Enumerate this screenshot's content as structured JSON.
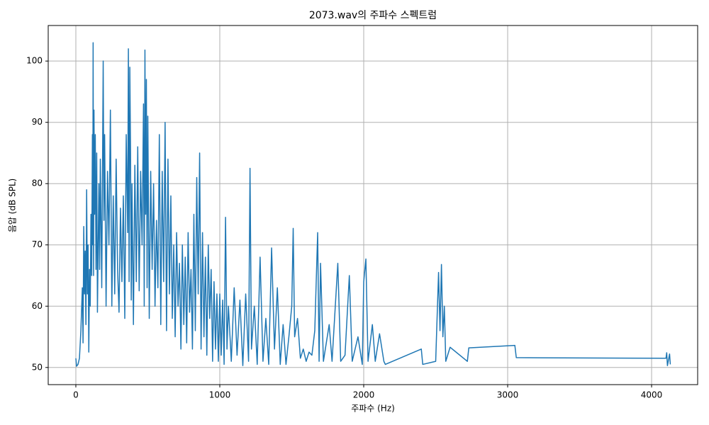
{
  "chart_data": {
    "type": "line",
    "title": "2073.wav의 주파수 스펙트럼",
    "x_label": "주파수 (Hz)",
    "y_label": "음압 (dB SPL)",
    "x": [
      0,
      5,
      15,
      25,
      35,
      45,
      50,
      55,
      60,
      65,
      70,
      75,
      80,
      85,
      90,
      95,
      100,
      105,
      110,
      115,
      118,
      120,
      123,
      126,
      130,
      135,
      140,
      145,
      150,
      160,
      165,
      170,
      180,
      190,
      195,
      200,
      210,
      220,
      230,
      240,
      250,
      260,
      270,
      280,
      290,
      300,
      310,
      320,
      330,
      340,
      350,
      360,
      365,
      370,
      375,
      380,
      385,
      390,
      400,
      410,
      420,
      430,
      440,
      450,
      460,
      470,
      475,
      480,
      485,
      490,
      495,
      500,
      510,
      520,
      530,
      540,
      550,
      560,
      570,
      580,
      590,
      600,
      610,
      620,
      630,
      640,
      650,
      660,
      670,
      680,
      690,
      700,
      710,
      720,
      730,
      740,
      750,
      760,
      770,
      780,
      790,
      800,
      810,
      820,
      830,
      840,
      850,
      860,
      870,
      880,
      890,
      900,
      910,
      920,
      930,
      940,
      950,
      960,
      970,
      980,
      990,
      1000,
      1010,
      1020,
      1030,
      1040,
      1050,
      1060,
      1080,
      1100,
      1120,
      1140,
      1160,
      1180,
      1200,
      1210,
      1220,
      1240,
      1260,
      1280,
      1300,
      1320,
      1340,
      1360,
      1380,
      1400,
      1420,
      1440,
      1460,
      1480,
      1500,
      1510,
      1520,
      1540,
      1560,
      1580,
      1600,
      1620,
      1640,
      1660,
      1680,
      1690,
      1700,
      1720,
      1760,
      1780,
      1820,
      1840,
      1870,
      1900,
      1920,
      1960,
      1990,
      2000,
      2015,
      2030,
      2060,
      2080,
      2110,
      2140,
      2150,
      2400,
      2410,
      2500,
      2520,
      2530,
      2540,
      2550,
      2560,
      2570,
      2600,
      2720,
      2730,
      3050,
      3060,
      4100,
      4105,
      4110,
      4125,
      4130
    ],
    "series": [
      {
        "name": "spectrum",
        "color": "#1f77b4",
        "values": [
          51.5,
          50.2,
          50.5,
          51.5,
          56,
          63,
          54,
          73,
          62,
          69,
          57,
          79,
          62,
          70,
          52.5,
          66,
          60,
          75,
          65,
          88,
          70,
          103,
          65,
          92,
          75,
          88,
          66,
          85,
          59,
          80,
          66,
          84,
          63,
          100,
          74,
          88,
          60,
          82,
          70,
          92,
          60,
          78,
          62,
          84,
          66,
          59,
          76,
          64,
          78,
          58,
          88,
          72,
          102,
          64,
          99,
          85,
          61,
          80,
          57,
          83,
          64,
          86,
          62.5,
          82,
          70,
          93,
          60,
          101.8,
          75,
          97,
          63,
          91,
          58,
          82,
          66,
          80,
          60,
          74,
          63,
          88,
          57,
          82,
          64,
          90,
          56,
          84,
          62,
          78,
          58,
          70,
          55,
          72,
          60,
          67,
          53,
          70,
          57,
          68,
          54,
          72,
          59,
          66,
          53,
          75,
          56,
          81,
          62,
          85,
          53,
          72,
          55,
          68,
          52,
          70,
          58,
          66,
          51,
          64,
          53,
          62,
          51,
          62,
          52,
          61,
          50.5,
          74.5,
          53,
          60,
          51,
          63,
          52,
          61,
          50.3,
          62,
          51,
          82.5,
          53,
          60,
          50.5,
          68,
          51,
          58,
          50.5,
          69.5,
          53,
          63,
          50.5,
          57,
          50.5,
          55,
          60,
          72.7,
          55,
          58,
          51.5,
          53,
          51,
          52.5,
          52,
          56,
          72,
          51,
          67,
          51,
          57,
          51,
          67,
          51,
          52,
          65,
          51,
          55,
          50.5,
          64,
          67.7,
          51,
          57,
          51,
          55.5,
          51,
          50.5,
          53,
          50.5,
          51,
          65.5,
          56,
          66.8,
          55,
          60,
          51,
          53.3,
          51,
          53.2,
          53.6,
          51.6,
          51.5,
          52.4,
          50.3,
          52.2,
          50.5
        ]
      }
    ],
    "xlim": [
      -192,
      4320
    ],
    "ylim": [
      47.2,
      105.8
    ],
    "xticks": [
      0,
      1000,
      2000,
      3000,
      4000
    ],
    "yticks": [
      50,
      60,
      70,
      80,
      90,
      100
    ],
    "grid": true
  }
}
